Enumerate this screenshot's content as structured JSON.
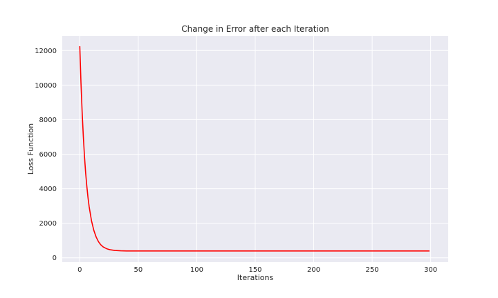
{
  "chart_data": {
    "type": "line",
    "title": "Change in Error after each Iteration",
    "xlabel": "Iterations",
    "ylabel": "Loss Function",
    "xlim": [
      -15,
      315
    ],
    "ylim": [
      -250,
      12850
    ],
    "xticks": [
      0,
      50,
      100,
      150,
      200,
      250,
      300
    ],
    "yticks": [
      0,
      2000,
      4000,
      6000,
      8000,
      10000,
      12000
    ],
    "grid": true,
    "background_color": "#eaeaf2",
    "grid_color": "#ffffff",
    "series": [
      {
        "color": "#ff0000",
        "x": [
          0,
          1,
          2,
          3,
          4,
          5,
          6,
          7,
          8,
          10,
          12,
          14,
          16,
          18,
          20,
          23,
          26,
          30,
          35,
          40,
          50,
          75,
          100,
          150,
          200,
          250,
          299
        ],
        "y": [
          12250,
          10150,
          8450,
          7050,
          5880,
          4920,
          4150,
          3500,
          2960,
          2150,
          1590,
          1200,
          930,
          750,
          630,
          525,
          465,
          425,
          405,
          398,
          395,
          395,
          395,
          395,
          395,
          395,
          395
        ]
      }
    ]
  }
}
